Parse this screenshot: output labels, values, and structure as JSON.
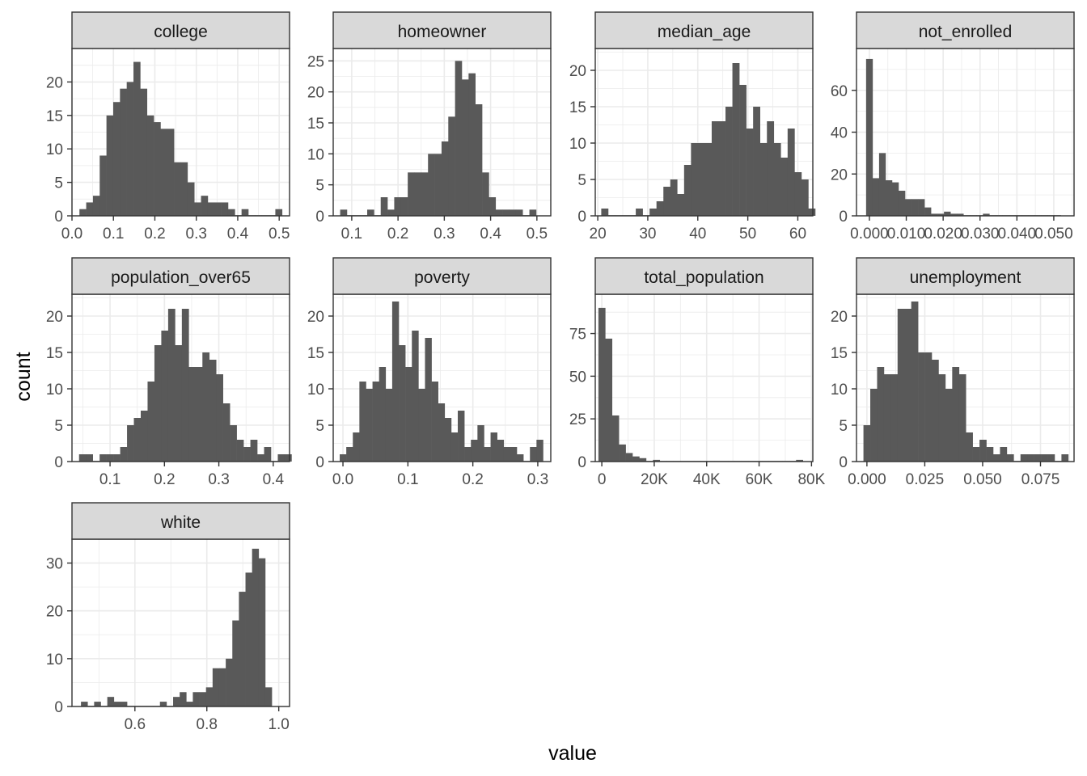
{
  "chart_data": {
    "type": "bar",
    "layout": "facet_wrap",
    "xlabel": "value",
    "ylabel": "count",
    "colors": {
      "bar": "#595959",
      "strip_fill": "#d9d9d9",
      "strip_border": "#333333",
      "panel_border": "#333333",
      "grid": "#ebebeb",
      "tick_label": "#4d4d4d",
      "axis_title": "#000000"
    },
    "facets": [
      {
        "label": "college",
        "xlim": [
          0.0,
          0.525
        ],
        "ylim": [
          0,
          25
        ],
        "xticks": [
          0.0,
          0.1,
          0.2,
          0.3,
          0.4,
          0.5
        ],
        "xtick_labels": [
          "0.0",
          "0.1",
          "0.2",
          "0.3",
          "0.4",
          "0.5"
        ],
        "yticks": [
          0,
          5,
          10,
          15,
          20
        ],
        "ytick_labels": [
          "0",
          "5",
          "10",
          "15",
          "20"
        ],
        "bin_start": 0.018,
        "bin_width": 0.0163,
        "counts": [
          1,
          2,
          3,
          9,
          15,
          17,
          19,
          20,
          23,
          19,
          15,
          14,
          13,
          13,
          8,
          8,
          5,
          2,
          3,
          2,
          2,
          2,
          1,
          0,
          1,
          0,
          0,
          0,
          0,
          1
        ]
      },
      {
        "label": "homeowner",
        "xlim": [
          0.06,
          0.53
        ],
        "ylim": [
          0,
          27
        ],
        "xticks": [
          0.1,
          0.2,
          0.3,
          0.4,
          0.5
        ],
        "xtick_labels": [
          "0.1",
          "0.2",
          "0.3",
          "0.4",
          "0.5"
        ],
        "yticks": [
          0,
          5,
          10,
          15,
          20,
          25
        ],
        "ytick_labels": [
          "0",
          "5",
          "10",
          "15",
          "20",
          "25"
        ],
        "bin_start": 0.075,
        "bin_width": 0.0146,
        "counts": [
          1,
          0,
          0,
          0,
          1,
          0,
          3,
          1,
          3,
          3,
          7,
          7,
          7,
          10,
          10,
          12,
          16,
          25,
          22,
          23,
          18,
          7,
          3,
          1,
          1,
          1,
          1,
          0,
          1
        ]
      },
      {
        "label": "median_age",
        "xlim": [
          19.5,
          63.0
        ],
        "ylim": [
          0,
          23
        ],
        "xticks": [
          20,
          30,
          40,
          50,
          60
        ],
        "xtick_labels": [
          "20",
          "30",
          "40",
          "50",
          "60"
        ],
        "yticks": [
          0,
          5,
          10,
          15,
          20
        ],
        "ytick_labels": [
          "0",
          "5",
          "10",
          "15",
          "20"
        ],
        "bin_start": 20.7,
        "bin_width": 1.38,
        "counts": [
          1,
          0,
          0,
          0,
          0,
          1,
          0,
          1,
          2,
          4,
          5,
          3,
          7,
          10,
          10,
          10,
          13,
          13,
          15,
          21,
          18,
          12,
          15,
          10,
          13,
          10,
          8,
          12,
          6,
          5,
          1
        ]
      },
      {
        "label": "not_enrolled",
        "xlim": [
          -0.0035,
          0.0555
        ],
        "ylim": [
          0,
          80
        ],
        "xticks": [
          0.0,
          0.01,
          0.02,
          0.03,
          0.04,
          0.05
        ],
        "xtick_labels": [
          "0.000",
          "0.010",
          "0.020",
          "0.030",
          "0.040",
          "0.050"
        ],
        "yticks": [
          0,
          20,
          40,
          60
        ],
        "ytick_labels": [
          "0",
          "20",
          "40",
          "60"
        ],
        "bin_start": -0.0009,
        "bin_width": 0.00176,
        "counts": [
          75,
          18,
          30,
          17,
          16,
          12,
          8,
          8,
          8,
          4,
          1,
          1,
          2,
          1,
          1,
          0,
          0,
          0,
          1,
          0,
          0,
          0,
          0,
          0,
          0,
          0,
          0,
          0,
          0,
          0
        ]
      },
      {
        "label": "population_over65",
        "xlim": [
          0.03,
          0.43
        ],
        "ylim": [
          0,
          23
        ],
        "xticks": [
          0.1,
          0.2,
          0.3,
          0.4
        ],
        "xtick_labels": [
          "0.1",
          "0.2",
          "0.3",
          "0.4"
        ],
        "yticks": [
          0,
          5,
          10,
          15,
          20
        ],
        "ytick_labels": [
          "0",
          "5",
          "10",
          "15",
          "20"
        ],
        "bin_start": 0.043,
        "bin_width": 0.0126,
        "counts": [
          1,
          1,
          0,
          1,
          1,
          1,
          2,
          5,
          6,
          7,
          11,
          16,
          18,
          21,
          16,
          21,
          13,
          13,
          15,
          14,
          12,
          8,
          5,
          3,
          2,
          3,
          1,
          2,
          0,
          1,
          1
        ]
      },
      {
        "label": "poverty",
        "xlim": [
          -0.015,
          0.32
        ],
        "ylim": [
          0,
          23
        ],
        "xticks": [
          0.0,
          0.1,
          0.2,
          0.3
        ],
        "xtick_labels": [
          "0.0",
          "0.1",
          "0.2",
          "0.3"
        ],
        "yticks": [
          0,
          5,
          10,
          15,
          20
        ],
        "ytick_labels": [
          "0",
          "5",
          "10",
          "15",
          "20"
        ],
        "bin_start": -0.005,
        "bin_width": 0.0101,
        "counts": [
          1,
          2,
          4,
          11,
          10,
          11,
          13,
          10,
          22,
          16,
          13,
          18,
          10,
          17,
          11,
          8,
          6,
          4,
          7,
          2,
          3,
          5,
          2,
          4,
          3,
          2,
          2,
          1,
          0,
          2,
          3
        ]
      },
      {
        "label": "total_population",
        "xlim": [
          -2500,
          80500
        ],
        "ylim": [
          0,
          98
        ],
        "xticks": [
          0,
          20000,
          40000,
          60000,
          80000
        ],
        "xtick_labels": [
          "0",
          "20K",
          "40K",
          "60K",
          "80K"
        ],
        "yticks": [
          0,
          25,
          50,
          75
        ],
        "ytick_labels": [
          "0",
          "25",
          "50",
          "75"
        ],
        "bin_start": -1300,
        "bin_width": 2600,
        "counts": [
          90,
          72,
          27,
          10,
          5,
          3,
          2,
          0,
          1,
          0,
          0,
          0,
          0,
          0,
          0,
          0,
          0,
          0,
          0,
          0,
          0,
          0,
          0,
          0,
          0,
          0,
          0,
          0,
          0,
          1
        ]
      },
      {
        "label": "unemployment",
        "xlim": [
          -0.0045,
          0.0895
        ],
        "ylim": [
          0,
          23
        ],
        "xticks": [
          0.0,
          0.025,
          0.05,
          0.075
        ],
        "xtick_labels": [
          "0.000",
          "0.025",
          "0.050",
          "0.075"
        ],
        "yticks": [
          0,
          5,
          10,
          15,
          20
        ],
        "ytick_labels": [
          "0",
          "5",
          "10",
          "15",
          "20"
        ],
        "bin_start": -0.0015,
        "bin_width": 0.00295,
        "counts": [
          5,
          10,
          13,
          12,
          12,
          21,
          21,
          22,
          15,
          15,
          14,
          12,
          10,
          13,
          12,
          4,
          2,
          3,
          2,
          1,
          2,
          1,
          0,
          1,
          1,
          1,
          1,
          1,
          0,
          1
        ]
      },
      {
        "label": "white",
        "xlim": [
          0.425,
          1.03
        ],
        "ylim": [
          0,
          35
        ],
        "xticks": [
          0.6,
          0.8,
          1.0
        ],
        "xtick_labels": [
          "0.6",
          "0.8",
          "1.0"
        ],
        "yticks": [
          0,
          10,
          20,
          30
        ],
        "ytick_labels": [
          "0",
          "10",
          "20",
          "30"
        ],
        "bin_start": 0.45,
        "bin_width": 0.0183,
        "counts": [
          1,
          0,
          1,
          0,
          2,
          1,
          1,
          0,
          0,
          0,
          0,
          0,
          1,
          0,
          2,
          3,
          1,
          3,
          3,
          4,
          8,
          8,
          10,
          18,
          24,
          28,
          33,
          31,
          4
        ]
      }
    ]
  }
}
